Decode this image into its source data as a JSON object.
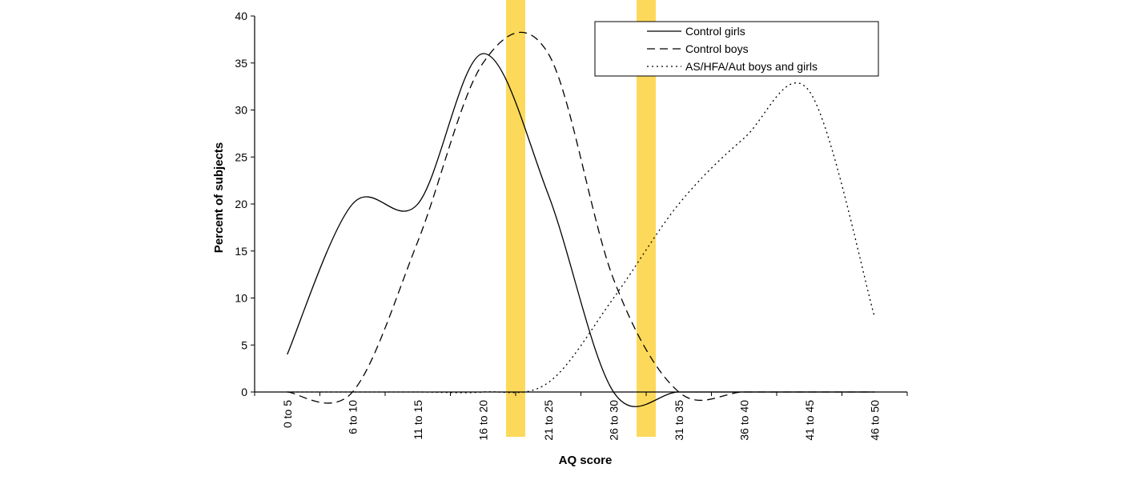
{
  "chart_data": {
    "type": "line",
    "xlabel": "AQ score",
    "ylabel": "Percent of subjects",
    "categories": [
      "0 to 5",
      "6 to 10",
      "11 to 15",
      "16 to 20",
      "21 to 25",
      "26 to 30",
      "31 to 35",
      "36 to 40",
      "41 to 45",
      "46 to 50"
    ],
    "ylim": [
      0,
      40
    ],
    "yticks": [
      0,
      5,
      10,
      15,
      20,
      25,
      30,
      35,
      40
    ],
    "series": [
      {
        "name": "Control girls",
        "style": "solid",
        "values": [
          4,
          20,
          20,
          36,
          21,
          0,
          0,
          0,
          0,
          0
        ]
      },
      {
        "name": "Control boys",
        "style": "dashed",
        "values": [
          0,
          0,
          16,
          35,
          36,
          12,
          0,
          0,
          0,
          0
        ]
      },
      {
        "name": "AS/HFA/Aut boys and girls",
        "style": "dotted",
        "values": [
          0,
          0,
          0,
          0,
          1,
          10,
          20,
          27,
          32,
          8
        ]
      }
    ],
    "highlights": [
      {
        "color": "#fdd23e",
        "between_categories": [
          "16 to 20",
          "21 to 25"
        ]
      },
      {
        "color": "#fdd23e",
        "between_categories": [
          "26 to 30",
          "31 to 35"
        ]
      }
    ],
    "legend_position": "top-right",
    "grid": false
  }
}
